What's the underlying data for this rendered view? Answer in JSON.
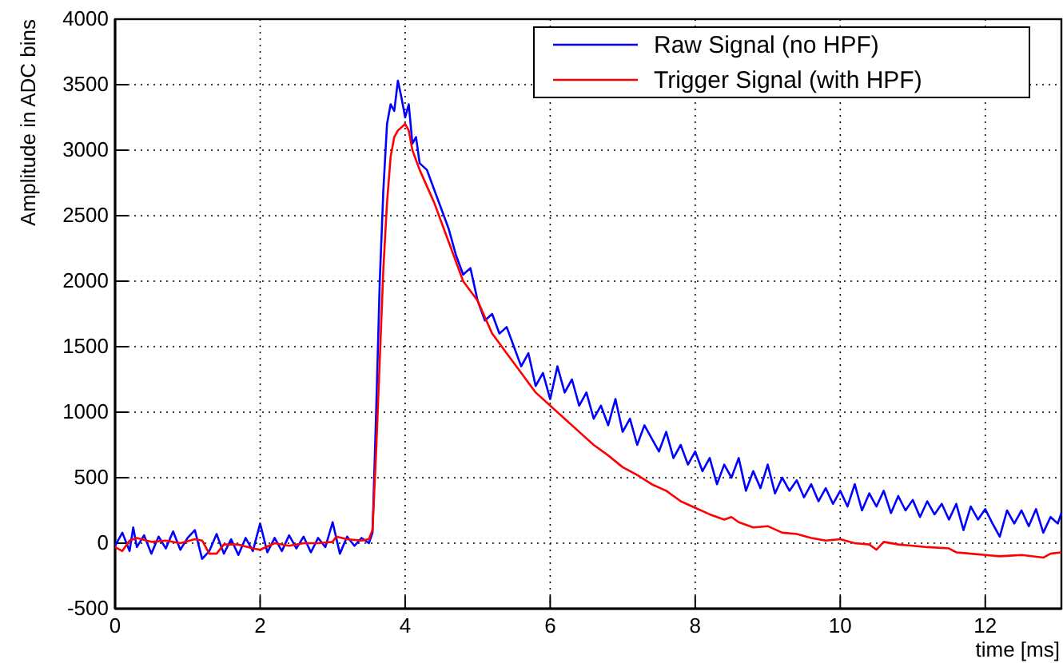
{
  "chart_data": {
    "type": "line",
    "xlabel": "time [ms]",
    "ylabel": "Amplitude in ADC bins",
    "xlim": [
      0,
      13.05
    ],
    "xticks": [
      0,
      2,
      4,
      6,
      8,
      10,
      12
    ],
    "ylim": [
      -500,
      4000
    ],
    "yticks": [
      -500,
      0,
      500,
      1000,
      1500,
      2000,
      2500,
      3000,
      3500,
      4000
    ],
    "grid": true,
    "legend": "top right",
    "line_style": "solid",
    "marker": "none",
    "series": [
      {
        "name": "Raw Signal (no HPF)",
        "color": "#0000ff",
        "x": [
          0,
          0.1,
          0.2,
          0.25,
          0.3,
          0.4,
          0.5,
          0.6,
          0.7,
          0.8,
          0.9,
          1.0,
          1.1,
          1.2,
          1.3,
          1.4,
          1.5,
          1.6,
          1.7,
          1.8,
          1.9,
          2.0,
          2.1,
          2.2,
          2.3,
          2.4,
          2.5,
          2.6,
          2.7,
          2.8,
          2.9,
          3.0,
          3.1,
          3.2,
          3.3,
          3.4,
          3.5,
          3.55,
          3.6,
          3.65,
          3.7,
          3.75,
          3.8,
          3.85,
          3.9,
          3.95,
          4.0,
          4.05,
          4.1,
          4.15,
          4.2,
          4.3,
          4.4,
          4.5,
          4.6,
          4.7,
          4.8,
          4.9,
          5.0,
          5.1,
          5.2,
          5.3,
          5.4,
          5.5,
          5.6,
          5.7,
          5.8,
          5.9,
          6.0,
          6.1,
          6.2,
          6.3,
          6.4,
          6.5,
          6.6,
          6.7,
          6.8,
          6.9,
          7.0,
          7.1,
          7.2,
          7.3,
          7.4,
          7.5,
          7.6,
          7.7,
          7.8,
          7.9,
          8.0,
          8.1,
          8.2,
          8.3,
          8.4,
          8.5,
          8.6,
          8.7,
          8.8,
          8.9,
          9.0,
          9.1,
          9.2,
          9.3,
          9.4,
          9.5,
          9.6,
          9.7,
          9.8,
          9.9,
          10.0,
          10.1,
          10.2,
          10.3,
          10.4,
          10.5,
          10.6,
          10.7,
          10.8,
          10.9,
          11.0,
          11.1,
          11.2,
          11.3,
          11.4,
          11.5,
          11.6,
          11.7,
          11.8,
          11.9,
          12.0,
          12.1,
          12.2,
          12.3,
          12.4,
          12.5,
          12.6,
          12.7,
          12.8,
          12.9,
          13.0,
          13.05
        ],
        "values": [
          -20,
          80,
          -60,
          120,
          -30,
          60,
          -80,
          50,
          -40,
          90,
          -50,
          40,
          100,
          -120,
          -60,
          70,
          -80,
          30,
          -90,
          40,
          -60,
          150,
          -70,
          40,
          -60,
          60,
          -40,
          50,
          -70,
          40,
          -30,
          160,
          -80,
          50,
          -20,
          40,
          0,
          80,
          1000,
          2000,
          2700,
          3200,
          3350,
          3300,
          3530,
          3400,
          3250,
          3350,
          3050,
          3100,
          2900,
          2850,
          2700,
          2550,
          2400,
          2200,
          2050,
          2100,
          1850,
          1700,
          1750,
          1600,
          1650,
          1500,
          1350,
          1450,
          1200,
          1300,
          1100,
          1350,
          1150,
          1250,
          1050,
          1150,
          950,
          1050,
          900,
          1100,
          850,
          950,
          750,
          900,
          800,
          700,
          850,
          650,
          750,
          600,
          700,
          550,
          650,
          450,
          600,
          500,
          650,
          400,
          550,
          420,
          600,
          380,
          500,
          400,
          480,
          350,
          450,
          320,
          420,
          300,
          400,
          280,
          450,
          250,
          380,
          280,
          400,
          230,
          360,
          250,
          330,
          200,
          320,
          220,
          300,
          180,
          300,
          100,
          280,
          180,
          260,
          150,
          50,
          250,
          150,
          250,
          130,
          260,
          80,
          200,
          150,
          230
        ]
      },
      {
        "name": "Trigger Signal (with HPF)",
        "color": "#ff0000",
        "x": [
          0,
          0.1,
          0.2,
          0.3,
          0.5,
          0.7,
          0.9,
          1.1,
          1.2,
          1.3,
          1.4,
          1.5,
          1.7,
          1.9,
          2.0,
          2.2,
          2.4,
          2.6,
          2.8,
          3.0,
          3.05,
          3.2,
          3.4,
          3.5,
          3.55,
          3.6,
          3.65,
          3.7,
          3.75,
          3.8,
          3.85,
          3.9,
          4.0,
          4.05,
          4.1,
          4.2,
          4.4,
          4.6,
          4.8,
          5.0,
          5.2,
          5.4,
          5.6,
          5.8,
          6.0,
          6.2,
          6.4,
          6.6,
          6.8,
          7.0,
          7.2,
          7.4,
          7.6,
          7.8,
          8.0,
          8.2,
          8.4,
          8.5,
          8.6,
          8.8,
          9.0,
          9.2,
          9.4,
          9.6,
          9.8,
          10.0,
          10.2,
          10.4,
          10.5,
          10.6,
          10.8,
          11.0,
          11.2,
          11.5,
          11.6,
          11.8,
          12.0,
          12.2,
          12.5,
          12.8,
          12.9,
          13.05
        ],
        "values": [
          -30,
          -60,
          20,
          40,
          10,
          20,
          0,
          30,
          20,
          -80,
          -80,
          -10,
          -10,
          -40,
          -50,
          0,
          -20,
          0,
          0,
          10,
          50,
          30,
          20,
          30,
          100,
          700,
          1400,
          2100,
          2600,
          2950,
          3100,
          3150,
          3200,
          3150,
          3000,
          2850,
          2600,
          2300,
          2000,
          1850,
          1600,
          1450,
          1300,
          1150,
          1050,
          950,
          850,
          750,
          670,
          580,
          520,
          450,
          400,
          320,
          270,
          220,
          180,
          200,
          160,
          120,
          130,
          80,
          70,
          40,
          20,
          30,
          0,
          -10,
          -50,
          10,
          -10,
          -20,
          -30,
          -40,
          -70,
          -80,
          -90,
          -100,
          -90,
          -110,
          -80,
          -70
        ]
      }
    ]
  }
}
